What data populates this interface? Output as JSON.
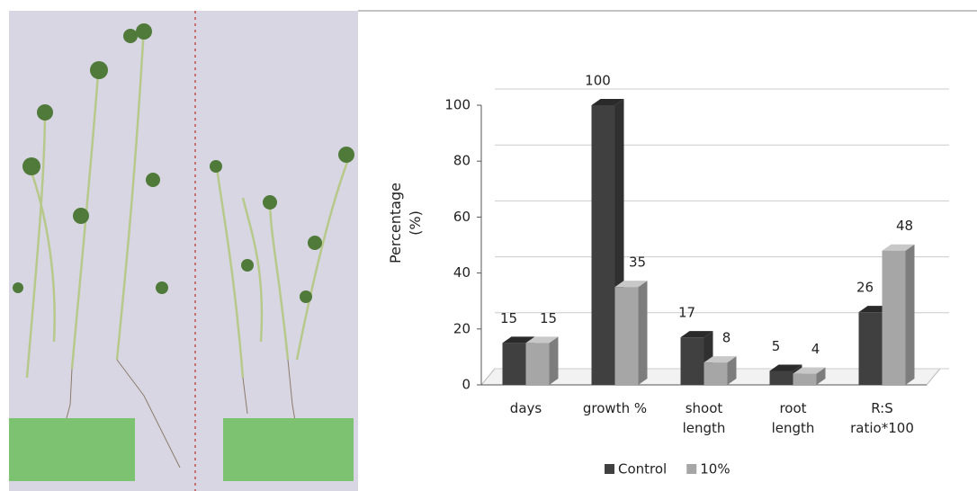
{
  "chart_data": {
    "type": "bar3d",
    "ylabel": "Percentage (%)",
    "categories": [
      "days",
      "growth %",
      "shoot length",
      "root length",
      "R:S ratio*100"
    ],
    "series": [
      {
        "name": "Control",
        "color": "#404040",
        "values": [
          15,
          100,
          17,
          5,
          26
        ]
      },
      {
        "name": "10%",
        "color": "#a6a6a6",
        "values": [
          15,
          35,
          8,
          4,
          48
        ]
      }
    ],
    "ylim": [
      0,
      100
    ],
    "yticks": [
      0,
      20,
      40,
      60,
      80,
      100
    ],
    "grid": true,
    "legend": "bottom"
  }
}
